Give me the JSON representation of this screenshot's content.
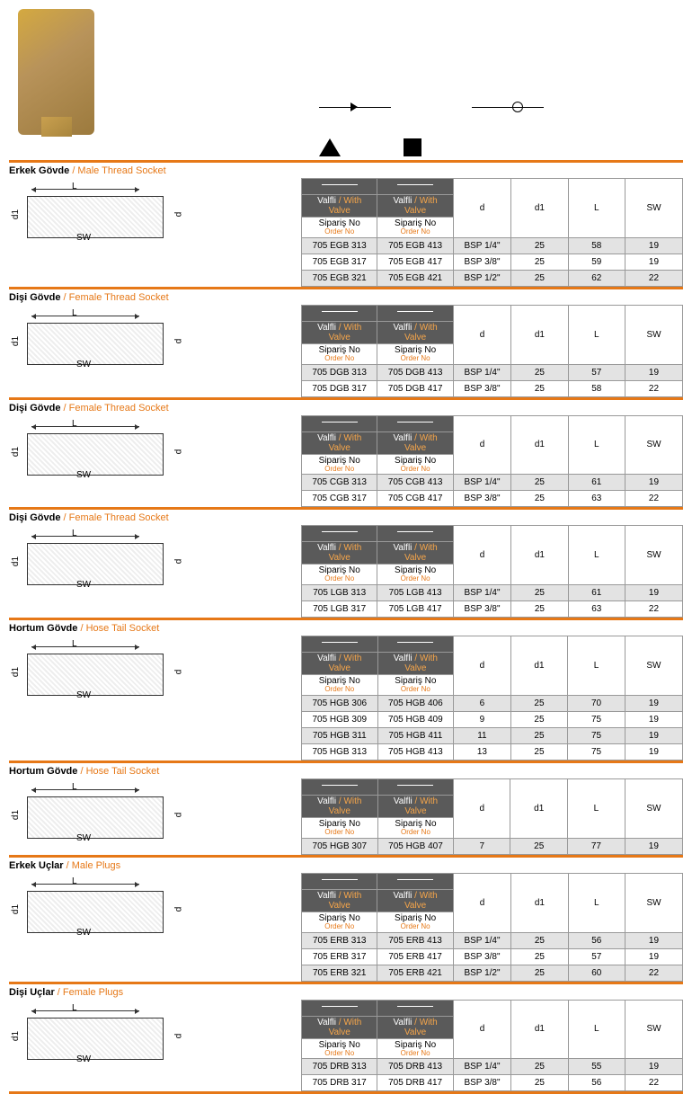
{
  "accent_color": "#e67817",
  "dark_header_bg": "#5a5a5a",
  "shaded_row_bg": "#e3e3e3",
  "header_labels": {
    "valve_tr": "Valfli",
    "valve_en": " / With Valve",
    "order_tr": "Sipariş No",
    "order_en": "Order No"
  },
  "dim_cols": [
    "d",
    "d1",
    "L",
    "SW"
  ],
  "sections": [
    {
      "title_tr": "Erkek Gövde",
      "title_en": " / Male Thread Socket",
      "rows": [
        {
          "o1": "705 EGB 313",
          "o2": "705 EGB 413",
          "d": "BSP 1/4\"",
          "d1": "25",
          "L": "58",
          "SW": "19",
          "shaded": true
        },
        {
          "o1": "705 EGB 317",
          "o2": "705 EGB 417",
          "d": "BSP 3/8\"",
          "d1": "25",
          "L": "59",
          "SW": "19",
          "shaded": false
        },
        {
          "o1": "705 EGB 321",
          "o2": "705 EGB 421",
          "d": "BSP 1/2\"",
          "d1": "25",
          "L": "62",
          "SW": "22",
          "shaded": true
        }
      ]
    },
    {
      "title_tr": "Dişi Gövde",
      "title_en": " / Female Thread Socket",
      "rows": [
        {
          "o1": "705 DGB 313",
          "o2": "705 DGB 413",
          "d": "BSP 1/4\"",
          "d1": "25",
          "L": "57",
          "SW": "19",
          "shaded": true
        },
        {
          "o1": "705 DGB 317",
          "o2": "705 DGB 417",
          "d": "BSP 3/8\"",
          "d1": "25",
          "L": "58",
          "SW": "22",
          "shaded": false
        }
      ]
    },
    {
      "title_tr": "Dişi Gövde",
      "title_en": " / Female Thread Socket",
      "rows": [
        {
          "o1": "705 CGB 313",
          "o2": "705 CGB 413",
          "d": "BSP 1/4\"",
          "d1": "25",
          "L": "61",
          "SW": "19",
          "shaded": true
        },
        {
          "o1": "705 CGB 317",
          "o2": "705 CGB 417",
          "d": "BSP 3/8\"",
          "d1": "25",
          "L": "63",
          "SW": "22",
          "shaded": false
        }
      ]
    },
    {
      "title_tr": "Dişi Gövde",
      "title_en": " / Female Thread Socket",
      "rows": [
        {
          "o1": "705 LGB 313",
          "o2": "705 LGB 413",
          "d": "BSP 1/4\"",
          "d1": "25",
          "L": "61",
          "SW": "19",
          "shaded": true
        },
        {
          "o1": "705 LGB 317",
          "o2": "705 LGB 417",
          "d": "BSP 3/8\"",
          "d1": "25",
          "L": "63",
          "SW": "22",
          "shaded": false
        }
      ]
    },
    {
      "title_tr": "Hortum Gövde",
      "title_en": " / Hose Tail Socket",
      "rows": [
        {
          "o1": "705 HGB 306",
          "o2": "705 HGB 406",
          "d": "6",
          "d1": "25",
          "L": "70",
          "SW": "19",
          "shaded": true
        },
        {
          "o1": "705 HGB 309",
          "o2": "705 HGB 409",
          "d": "9",
          "d1": "25",
          "L": "75",
          "SW": "19",
          "shaded": false
        },
        {
          "o1": "705 HGB 311",
          "o2": "705 HGB 411",
          "d": "11",
          "d1": "25",
          "L": "75",
          "SW": "19",
          "shaded": true
        },
        {
          "o1": "705 HGB 313",
          "o2": "705 HGB 413",
          "d": "13",
          "d1": "25",
          "L": "75",
          "SW": "19",
          "shaded": false
        }
      ]
    },
    {
      "title_tr": "Hortum Gövde",
      "title_en": " / Hose Tail Socket",
      "rows": [
        {
          "o1": "705 HGB 307",
          "o2": "705 HGB 407",
          "d": "7",
          "d1": "25",
          "L": "77",
          "SW": "19",
          "shaded": true
        }
      ]
    },
    {
      "title_tr": "Erkek Uçlar",
      "title_en": " / Male Plugs",
      "rows": [
        {
          "o1": "705 ERB 313",
          "o2": "705 ERB 413",
          "d": "BSP 1/4\"",
          "d1": "25",
          "L": "56",
          "SW": "19",
          "shaded": true
        },
        {
          "o1": "705 ERB 317",
          "o2": "705 ERB 417",
          "d": "BSP 3/8\"",
          "d1": "25",
          "L": "57",
          "SW": "19",
          "shaded": false
        },
        {
          "o1": "705 ERB 321",
          "o2": "705 ERB 421",
          "d": "BSP 1/2\"",
          "d1": "25",
          "L": "60",
          "SW": "22",
          "shaded": true
        }
      ]
    },
    {
      "title_tr": "Dişi Uçlar",
      "title_en": " / Female Plugs",
      "rows": [
        {
          "o1": "705 DRB 313",
          "o2": "705 DRB 413",
          "d": "BSP 1/4\"",
          "d1": "25",
          "L": "55",
          "SW": "19",
          "shaded": true
        },
        {
          "o1": "705 DRB 317",
          "o2": "705 DRB 417",
          "d": "BSP 3/8\"",
          "d1": "25",
          "L": "56",
          "SW": "22",
          "shaded": false
        }
      ]
    }
  ]
}
